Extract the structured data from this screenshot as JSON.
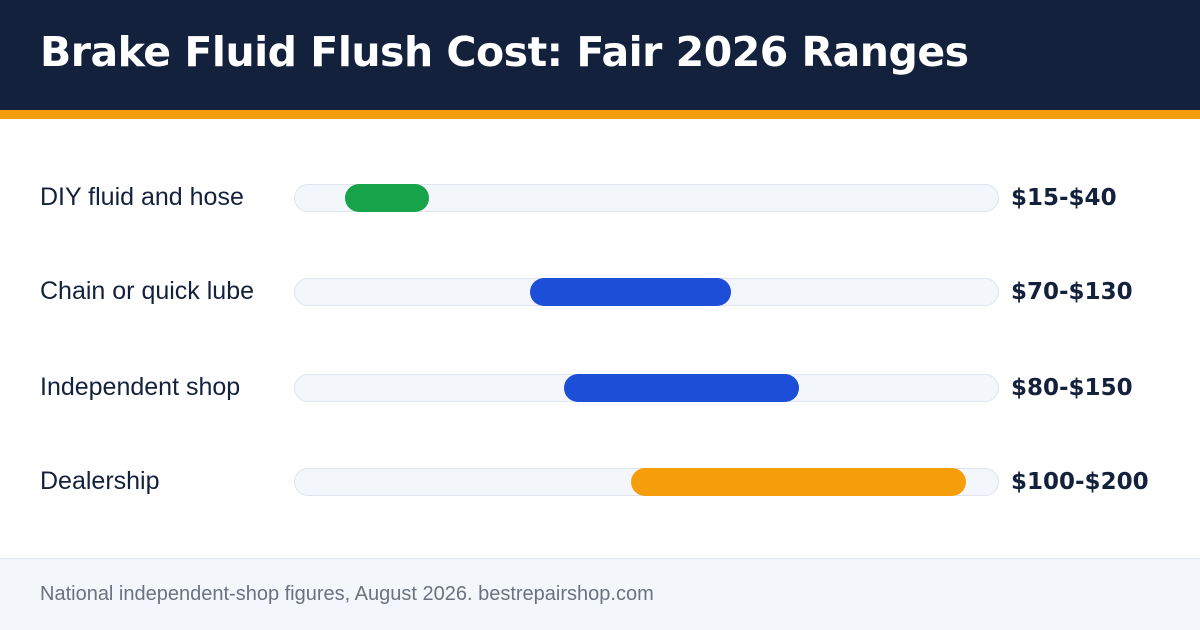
{
  "header": {
    "title": "Brake Fluid Flush Cost: Fair 2026 Ranges"
  },
  "chart_data": {
    "type": "range-bar",
    "title": "Brake Fluid Flush Cost: Fair 2026 Ranges",
    "xlim": [
      0,
      210
    ],
    "rows": [
      {
        "label": "DIY fluid and hose",
        "low": 15,
        "high": 40,
        "range_label": "$15-$40",
        "color": "#16a34a"
      },
      {
        "label": "Chain or quick lube",
        "low": 70,
        "high": 130,
        "range_label": "$70-$130",
        "color": "#1d4ed8"
      },
      {
        "label": "Independent shop",
        "low": 80,
        "high": 150,
        "range_label": "$80-$150",
        "color": "#1d4ed8"
      },
      {
        "label": "Dealership",
        "low": 100,
        "high": 200,
        "range_label": "$100-$200",
        "color": "#f59e0b"
      }
    ]
  },
  "footer": {
    "note": "National independent-shop figures, August 2026. bestrepairshop.com"
  },
  "colors": {
    "header_bg": "#14213d",
    "accent": "#f59e0b",
    "track": "#f3f6fa"
  }
}
